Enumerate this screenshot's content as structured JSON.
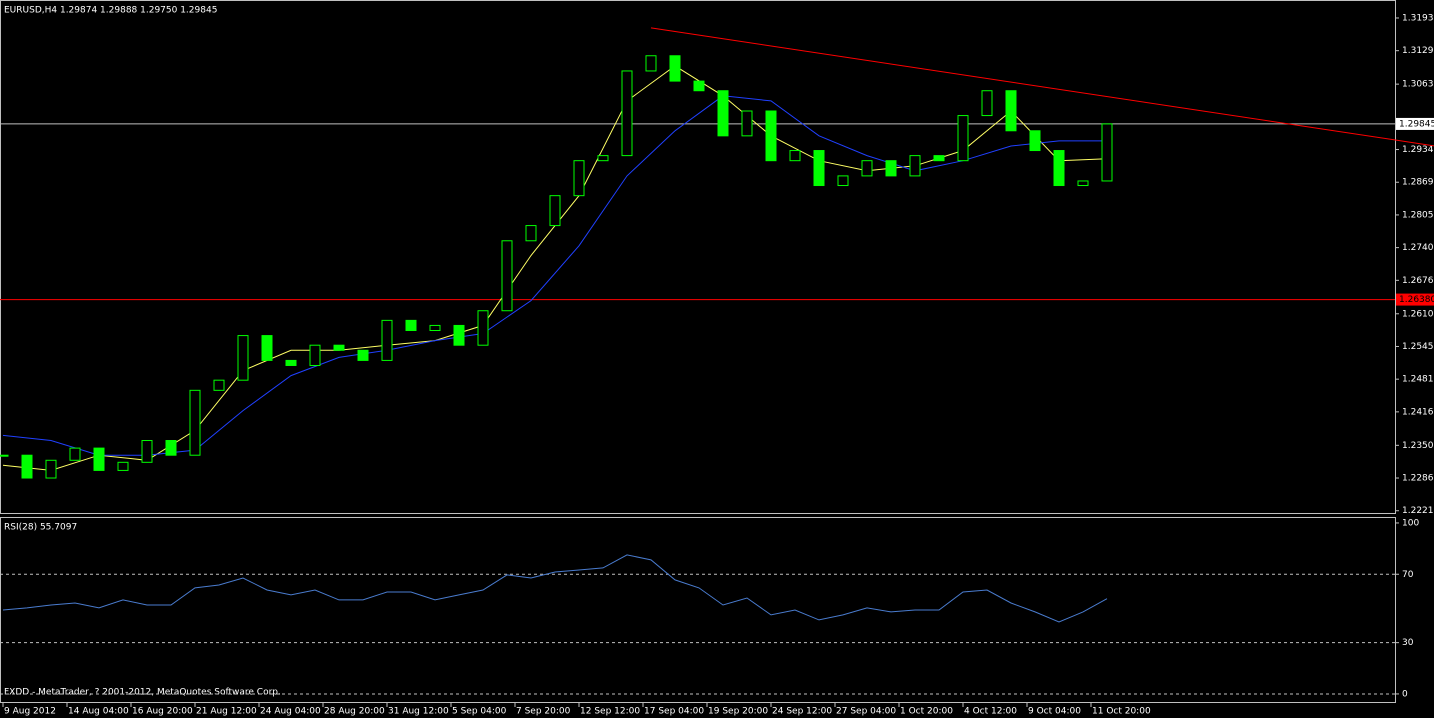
{
  "header": {
    "footer": "FXDD - MetaTrader, ? 2001-2012, MetaQuotes Software Corp."
  },
  "chart_data": [
    {
      "type": "candlestick",
      "title": "EURUSD,H4  1.29874 1.29888 1.29750 1.29845",
      "color": "#00ff00",
      "x": [
        0,
        6,
        12,
        18,
        24,
        30,
        36,
        42,
        48,
        54,
        60,
        66,
        72,
        78,
        84,
        90,
        96,
        102,
        108,
        114,
        120,
        126,
        132,
        138,
        144,
        150,
        156,
        162,
        168,
        174,
        180,
        186,
        192,
        198,
        204,
        210,
        216,
        222,
        228,
        234,
        240,
        246,
        252,
        258,
        264,
        270,
        276
      ],
      "close": [
        1.2331,
        1.2286,
        1.2321,
        1.2345,
        1.2301,
        1.2317,
        1.236,
        1.2331,
        1.2459,
        1.2479,
        1.2567,
        1.2518,
        1.2508,
        1.2548,
        1.2538,
        1.2518,
        1.2597,
        1.2577,
        1.2587,
        1.2548,
        1.2616,
        1.2754,
        1.2784,
        1.2843,
        1.2912,
        1.2922,
        1.3089,
        1.3119,
        1.3069,
        1.305,
        1.2961,
        1.301,
        1.2912,
        1.2932,
        1.2863,
        1.2882,
        1.2912,
        1.2882,
        1.2922,
        1.2912,
        1.3001,
        1.305,
        1.2971,
        1.2932,
        1.2863,
        1.2872,
        1.29845
      ],
      "overlays": [
        {
          "color": "#ffff66",
          "x": [
            0,
            12,
            24,
            36,
            48,
            60,
            72,
            84,
            96,
            108,
            120,
            132,
            144,
            156,
            168,
            180,
            192,
            204,
            216,
            228,
            240,
            252,
            264,
            276
          ],
          "values": [
            1.2311,
            1.2301,
            1.2331,
            1.2321,
            1.238,
            1.2498,
            1.2538,
            1.2538,
            1.2548,
            1.2557,
            1.2587,
            1.2725,
            1.2843,
            1.303,
            1.3099,
            1.304,
            1.2961,
            1.2912,
            1.2892,
            1.2902,
            1.2932,
            1.301,
            1.2912,
            1.2916
          ]
        },
        {
          "color": "#2040ff",
          "x": [
            0,
            12,
            24,
            36,
            48,
            60,
            72,
            84,
            96,
            108,
            120,
            132,
            144,
            156,
            168,
            180,
            192,
            204,
            216,
            228,
            240,
            252,
            264,
            276
          ],
          "values": [
            1.237,
            1.236,
            1.2331,
            1.2331,
            1.2341,
            1.2419,
            1.2488,
            1.2524,
            1.2538,
            1.2557,
            1.2571,
            1.2636,
            1.2744,
            1.2882,
            1.2971,
            1.304,
            1.303,
            1.2961,
            1.2922,
            1.2892,
            1.2912,
            1.2941,
            1.2951,
            1.2951
          ]
        }
      ],
      "trendline": {
        "color": "#ff0000",
        "x": [
          162,
          358
        ],
        "values": [
          1.3174,
          1.2941
        ]
      },
      "hlines": [
        {
          "value": 1.29845,
          "label": "1.29845",
          "color": "#c0c0c0",
          "box": "#ffffff"
        },
        {
          "value": 1.2638,
          "label": "1.26380",
          "color": "#ff0000",
          "box": "#ff0000"
        }
      ],
      "xlim": [
        -0.75,
        348
      ],
      "ylim": [
        1.2217,
        1.3227
      ],
      "yticks": [
        1.31935,
        {
          "value": 1.3129,
          "label": "1.31290"
        },
        {
          "value": 1.3063,
          "label": "1.30630"
        },
        {
          "value": 1.2934,
          "label": "1.29340"
        },
        1.28695,
        {
          "value": 1.2805,
          "label": "1.28050"
        },
        1.27405,
        {
          "value": 1.2676,
          "label": "1.26760"
        },
        {
          "value": 1.261,
          "label": "1.26100"
        },
        1.25455,
        {
          "value": 1.2481,
          "label": "1.24810"
        },
        1.24165,
        1.23505,
        {
          "value": 1.2286,
          "label": "1.22860"
        },
        1.22215
      ],
      "xticks": [
        {
          "value": 0,
          "label": "9 Aug 2012"
        },
        {
          "value": 16,
          "label": "14 Aug 04:00"
        },
        {
          "value": 32,
          "label": "16 Aug 20:00"
        },
        {
          "value": 48,
          "label": "21 Aug 12:00"
        },
        {
          "value": 64,
          "label": "24 Aug 04:00"
        },
        {
          "value": 80,
          "label": "28 Aug 20:00"
        },
        {
          "value": 96,
          "label": "31 Aug 12:00"
        },
        {
          "value": 112,
          "label": "5 Sep 04:00"
        },
        {
          "value": 128,
          "label": "7 Sep 20:00"
        },
        {
          "value": 144,
          "label": "12 Sep 12:00"
        },
        {
          "value": 160,
          "label": "17 Sep 04:00"
        },
        {
          "value": 176,
          "label": "19 Sep 20:00"
        },
        {
          "value": 192,
          "label": "24 Sep 12:00"
        },
        {
          "value": 208,
          "label": "27 Sep 04:00"
        },
        {
          "value": 224,
          "label": "1 Oct 20:00"
        },
        {
          "value": 240,
          "label": "4 Oct 12:00"
        },
        {
          "value": 256,
          "label": "9 Oct 04:00"
        },
        {
          "value": 272,
          "label": "11 Oct 20:00"
        }
      ]
    },
    {
      "type": "line",
      "title": "RSI(28) 55.7097",
      "color": "#4a7ccf",
      "x": [
        0,
        6,
        12,
        18,
        24,
        30,
        36,
        42,
        48,
        54,
        60,
        66,
        72,
        78,
        84,
        90,
        96,
        102,
        108,
        114,
        120,
        126,
        132,
        138,
        144,
        150,
        156,
        162,
        168,
        174,
        180,
        186,
        192,
        198,
        204,
        210,
        216,
        222,
        228,
        234,
        240,
        246,
        252,
        258,
        264,
        270,
        276
      ],
      "values": [
        49.1,
        50.3,
        52.0,
        53.2,
        50.3,
        55.0,
        52.0,
        52.0,
        62.0,
        63.7,
        67.8,
        60.8,
        57.9,
        60.8,
        55.0,
        55.0,
        59.6,
        59.6,
        55.0,
        57.9,
        60.8,
        69.6,
        67.8,
        71.3,
        72.5,
        73.7,
        81.3,
        78.4,
        66.7,
        62.0,
        52.0,
        56.1,
        46.2,
        49.1,
        43.3,
        46.2,
        50.3,
        48.0,
        49.1,
        49.1,
        59.6,
        60.8,
        53.2,
        48.0,
        42.1,
        48.0,
        55.7097
      ],
      "xlim": [
        -0.75,
        348
      ],
      "ylim": [
        -5.3,
        102.9
      ],
      "yticks": [
        0,
        30,
        70,
        100
      ]
    }
  ]
}
